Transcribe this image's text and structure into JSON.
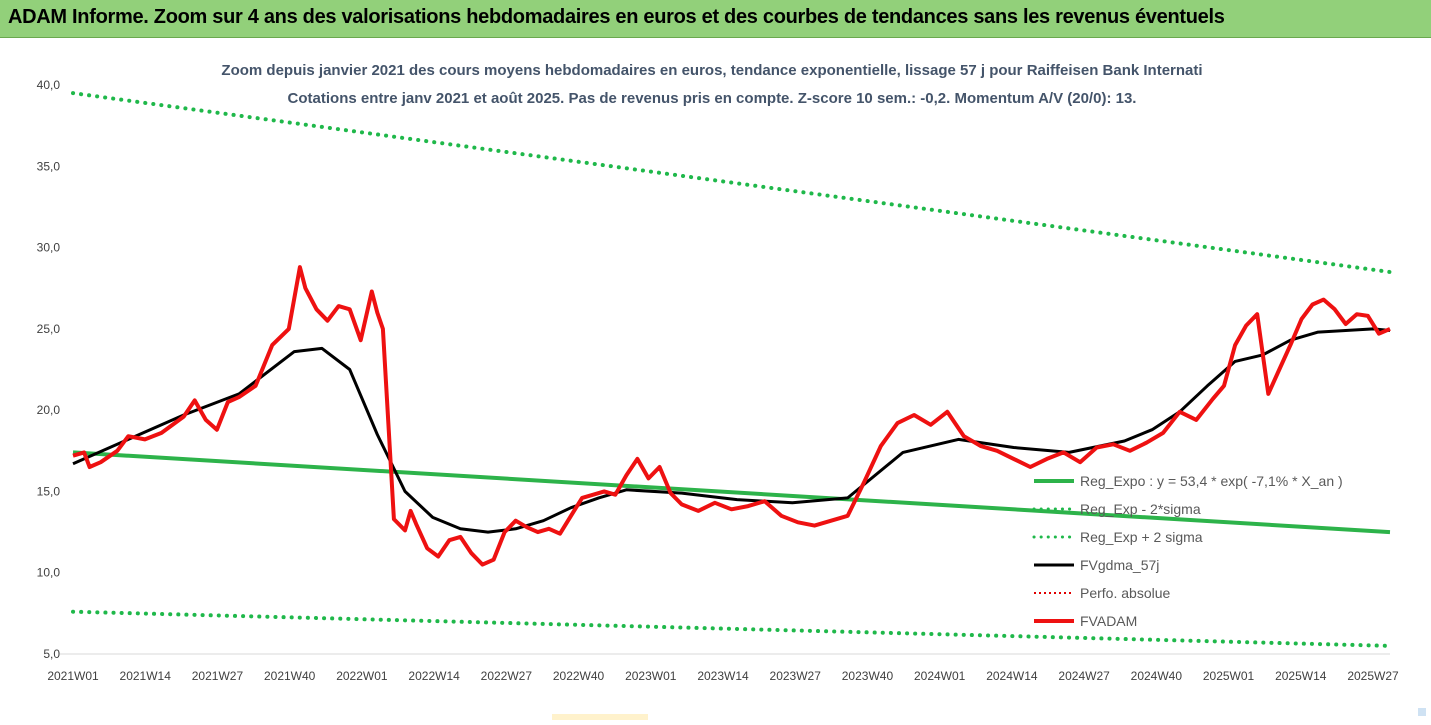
{
  "header": {
    "title": "ADAM Informe. Zoom sur 4 ans des valorisations hebdomadaires en euros et des courbes de tendances sans les revenus éventuels"
  },
  "colors": {
    "header_bg": "#92d07a",
    "trend": "#2db34a",
    "band": "#1fb84a",
    "gdma": "#000000",
    "perfo": "#e00000",
    "fvadam": "#ee1111"
  },
  "chart_data": {
    "type": "line",
    "title": "Zoom depuis janvier 2021 des cours moyens hebdomadaires en euros, tendance exponentielle, lissage 57 j pour Raiffeisen Bank Internati",
    "subtitle": "Cotations entre janv 2021 et août 2025.  Pas de revenus pris en compte. Z-score 10 sem.: -0,2. Momentum A/V (20/0): 13.",
    "xlabel": "",
    "ylabel": "",
    "ylim": [
      5,
      40
    ],
    "y_ticks": [
      "40,0",
      "35,0",
      "30,0",
      "25,0",
      "20,0",
      "15,0",
      "10,0",
      "5,0"
    ],
    "x_ticks": [
      "2021W01",
      "2021W14",
      "2021W27",
      "2021W40",
      "2022W01",
      "2022W14",
      "2022W27",
      "2022W40",
      "2023W01",
      "2023W14",
      "2023W27",
      "2023W40",
      "2024W01",
      "2024W14",
      "2024W27",
      "2024W40",
      "2025W01",
      "2025W14",
      "2025W27"
    ],
    "grid": false,
    "legend_position": "bottom-right",
    "legend": [
      {
        "label": "Reg_Expo : y = 53,4 * exp( -7,1% *  X_an )",
        "style": "solid-green"
      },
      {
        "label": "Reg_Exp - 2*sigma",
        "style": "dotted-green"
      },
      {
        "label": "Reg_Exp + 2 sigma",
        "style": "dotted-green"
      },
      {
        "label": "FVgdma_57j",
        "style": "solid-black"
      },
      {
        "label": "Perfo. absolue",
        "style": "dotted-red"
      },
      {
        "label": "FVADAM",
        "style": "solid-red"
      }
    ],
    "series": [
      {
        "name": "Reg_Expo : y = 53,4 * exp( -7,1% *  X_an )",
        "x": [
          0,
          238
        ],
        "y": [
          17.4,
          12.5
        ]
      },
      {
        "name": "Reg_Exp - 2*sigma",
        "x": [
          0,
          238
        ],
        "y": [
          7.6,
          5.5
        ]
      },
      {
        "name": "Reg_Exp + 2 sigma",
        "x": [
          0,
          238
        ],
        "y": [
          39.5,
          28.5
        ]
      },
      {
        "name": "FVgdma_57j",
        "x": [
          0,
          10,
          20,
          30,
          40,
          45,
          50,
          55,
          60,
          65,
          70,
          75,
          80,
          85,
          90,
          95,
          100,
          110,
          120,
          130,
          140,
          150,
          160,
          170,
          180,
          190,
          195,
          200,
          205,
          210,
          215,
          220,
          225,
          230,
          235,
          238
        ],
        "y": [
          16.7,
          18.2,
          19.7,
          21.0,
          23.6,
          23.8,
          22.5,
          18.5,
          15.0,
          13.4,
          12.7,
          12.5,
          12.7,
          13.2,
          14.0,
          14.6,
          15.1,
          14.9,
          14.5,
          14.3,
          14.6,
          17.4,
          18.2,
          17.7,
          17.4,
          18.1,
          18.8,
          19.9,
          21.5,
          23.0,
          23.4,
          24.3,
          24.8,
          24.9,
          25.0,
          24.9
        ]
      },
      {
        "name": "FVADAM",
        "x": [
          0,
          2,
          3,
          5,
          8,
          10,
          13,
          16,
          20,
          22,
          24,
          26,
          28,
          30,
          33,
          36,
          39,
          41,
          42,
          44,
          46,
          48,
          50,
          52,
          54,
          55,
          56,
          58,
          60,
          61,
          62,
          64,
          66,
          68,
          70,
          72,
          74,
          76,
          78,
          80,
          82,
          84,
          86,
          88,
          90,
          92,
          94,
          96,
          98,
          100,
          102,
          104,
          106,
          108,
          110,
          113,
          116,
          119,
          122,
          125,
          128,
          131,
          134,
          137,
          140,
          143,
          146,
          149,
          152,
          155,
          158,
          161,
          164,
          167,
          170,
          173,
          176,
          179,
          182,
          185,
          188,
          191,
          194,
          197,
          200,
          203,
          206,
          208,
          210,
          212,
          214,
          216,
          218,
          220,
          222,
          224,
          226,
          228,
          230,
          232,
          234,
          236,
          238
        ],
        "y": [
          17.2,
          17.4,
          16.5,
          16.8,
          17.5,
          18.4,
          18.2,
          18.6,
          19.6,
          20.6,
          19.4,
          18.8,
          20.5,
          20.8,
          21.5,
          24.0,
          25.0,
          28.8,
          27.5,
          26.2,
          25.5,
          26.4,
          26.2,
          24.3,
          27.3,
          26.0,
          25.0,
          13.3,
          12.6,
          13.8,
          13.0,
          11.5,
          11.0,
          12.0,
          12.2,
          11.2,
          10.5,
          10.8,
          12.5,
          13.2,
          12.8,
          12.5,
          12.7,
          12.4,
          13.5,
          14.6,
          14.8,
          15.0,
          14.8,
          16.0,
          17.0,
          15.8,
          16.5,
          14.9,
          14.2,
          13.8,
          14.3,
          13.9,
          14.1,
          14.4,
          13.5,
          13.1,
          12.9,
          13.2,
          13.5,
          15.6,
          17.8,
          19.2,
          19.7,
          19.1,
          19.9,
          18.4,
          17.8,
          17.5,
          17.0,
          16.5,
          17.0,
          17.4,
          16.8,
          17.7,
          17.9,
          17.5,
          18.0,
          18.6,
          19.9,
          19.4,
          20.7,
          21.5,
          24.0,
          25.2,
          25.9,
          21.0,
          22.5,
          24.0,
          25.6,
          26.5,
          26.8,
          26.2,
          25.3,
          25.9,
          25.8,
          24.7,
          25.0
        ]
      }
    ]
  }
}
